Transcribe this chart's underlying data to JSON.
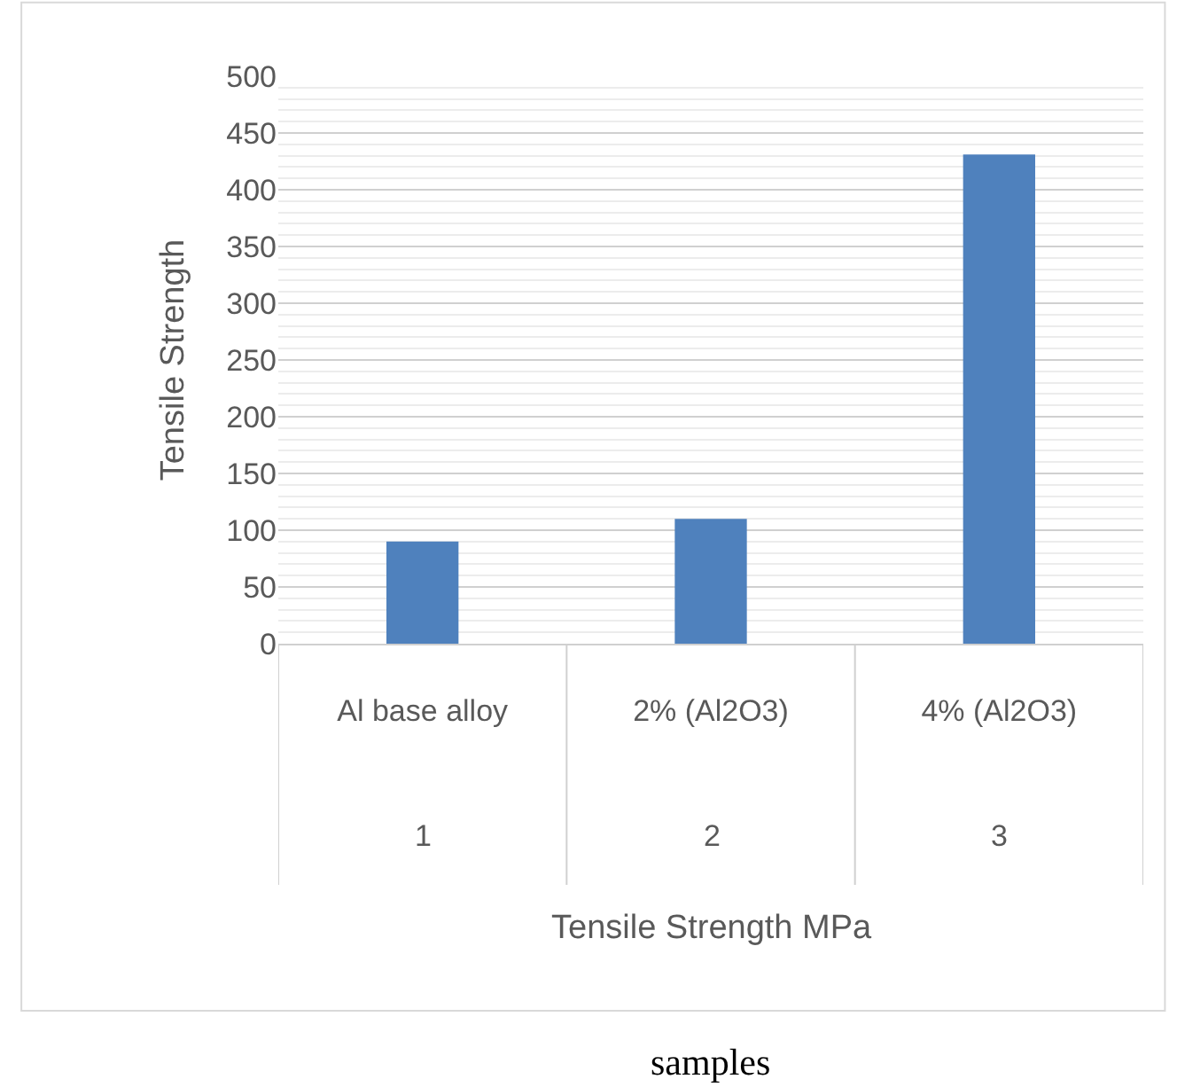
{
  "chart_data": {
    "type": "bar",
    "ylabel": "Tensile Strength",
    "categories": [
      "Al base alloy",
      "2% (Al2O3)",
      "4% (Al2O3)"
    ],
    "values": [
      90,
      110,
      431
    ],
    "color": "#4f81bd",
    "ylim": [
      0,
      500
    ],
    "yticks": [
      0,
      50,
      100,
      150,
      200,
      250,
      300,
      350,
      400,
      450,
      500
    ],
    "grid": true,
    "annotations": [
      "1",
      "2",
      "3",
      "Tensile Strength MPa",
      "samples"
    ]
  }
}
